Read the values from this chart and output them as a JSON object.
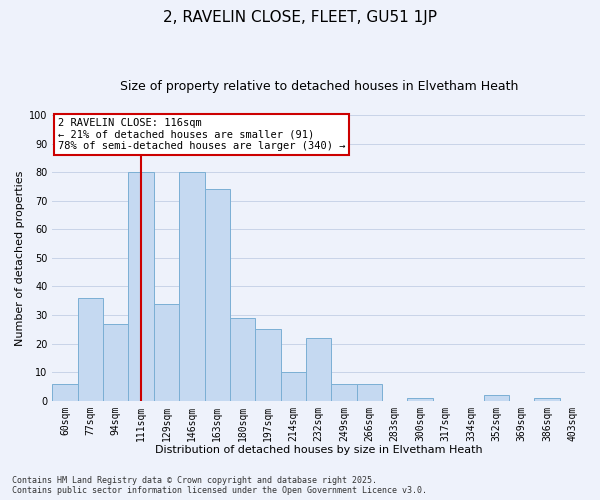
{
  "title": "2, RAVELIN CLOSE, FLEET, GU51 1JP",
  "subtitle": "Size of property relative to detached houses in Elvetham Heath",
  "xlabel": "Distribution of detached houses by size in Elvetham Heath",
  "ylabel": "Number of detached properties",
  "bar_labels": [
    "60sqm",
    "77sqm",
    "94sqm",
    "111sqm",
    "129sqm",
    "146sqm",
    "163sqm",
    "180sqm",
    "197sqm",
    "214sqm",
    "232sqm",
    "249sqm",
    "266sqm",
    "283sqm",
    "300sqm",
    "317sqm",
    "334sqm",
    "352sqm",
    "369sqm",
    "386sqm",
    "403sqm"
  ],
  "bar_values": [
    6,
    36,
    27,
    80,
    34,
    80,
    74,
    29,
    25,
    10,
    22,
    6,
    6,
    0,
    1,
    0,
    0,
    2,
    0,
    1,
    0
  ],
  "bar_color": "#c5d9f1",
  "bar_edge_color": "#7bafd4",
  "ylim": [
    0,
    100
  ],
  "yticks": [
    0,
    10,
    20,
    30,
    40,
    50,
    60,
    70,
    80,
    90,
    100
  ],
  "vline_x": 3.5,
  "vline_color": "#cc0000",
  "annotation_title": "2 RAVELIN CLOSE: 116sqm",
  "annotation_line1": "← 21% of detached houses are smaller (91)",
  "annotation_line2": "78% of semi-detached houses are larger (340) →",
  "annotation_box_color": "#ffffff",
  "annotation_box_edge": "#cc0000",
  "footer1": "Contains HM Land Registry data © Crown copyright and database right 2025.",
  "footer2": "Contains public sector information licensed under the Open Government Licence v3.0.",
  "background_color": "#eef2fb",
  "grid_color": "#c8d4e8",
  "title_fontsize": 11,
  "subtitle_fontsize": 9,
  "axis_label_fontsize": 8,
  "tick_fontsize": 7,
  "annotation_fontsize": 7.5,
  "footer_fontsize": 6
}
